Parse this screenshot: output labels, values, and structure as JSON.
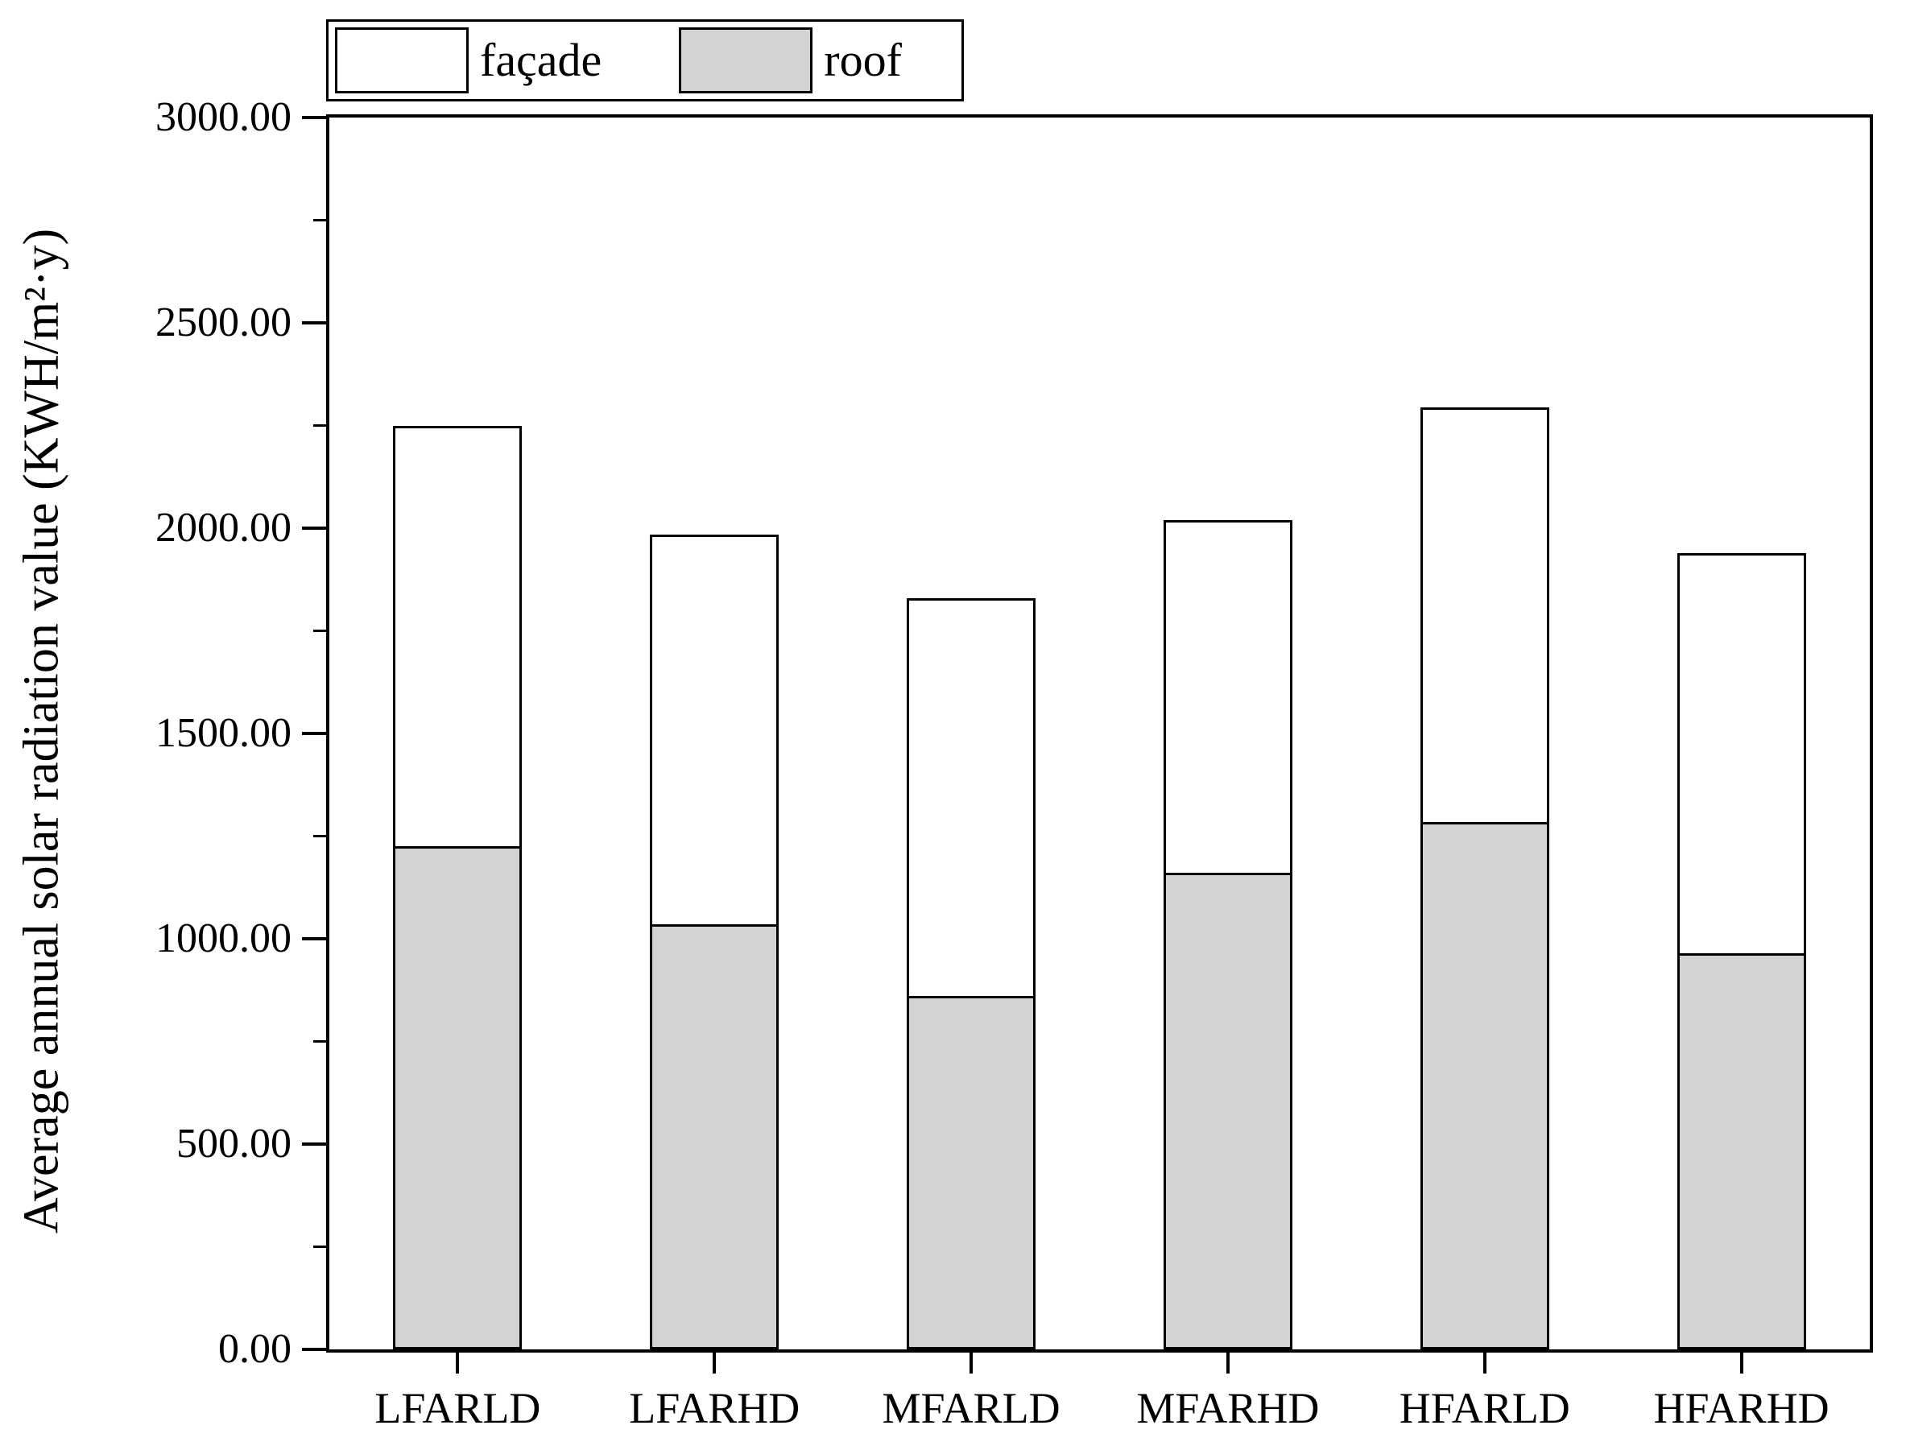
{
  "chart_data": {
    "type": "bar",
    "subtype": "stacked-vertical",
    "categories": [
      "LFARLD",
      "LFARHD",
      "MFARLD",
      "MFARHD",
      "HFARLD",
      "HFARHD"
    ],
    "series": [
      {
        "name": "façade",
        "color": "#ffffff",
        "values": [
          1025,
          950,
          970,
          860,
          1010,
          975
        ]
      },
      {
        "name": "roof",
        "color": "#d3d3d3",
        "values": [
          1225,
          1035,
          860,
          1160,
          1285,
          965
        ]
      }
    ],
    "stack_order_bottom_to_top": [
      "roof",
      "façade"
    ],
    "totals": [
      2250,
      1985,
      1830,
      2020,
      2295,
      1940
    ],
    "title": "",
    "xlabel": "",
    "ylabel": "Average annual solar radiation value (KWH/m²·y)",
    "ylim": [
      0,
      3000
    ],
    "ytick_major_step": 500,
    "ytick_minor_step": 250,
    "ytick_labels": [
      "0.00",
      "500.00",
      "1000.00",
      "1500.00",
      "2000.00",
      "2500.00",
      "3000.00"
    ],
    "grid": "off",
    "legend_position": "top-left-outside",
    "bar_outline_color": "#000000",
    "axis_color": "#000000",
    "background_color": "#ffffff"
  }
}
